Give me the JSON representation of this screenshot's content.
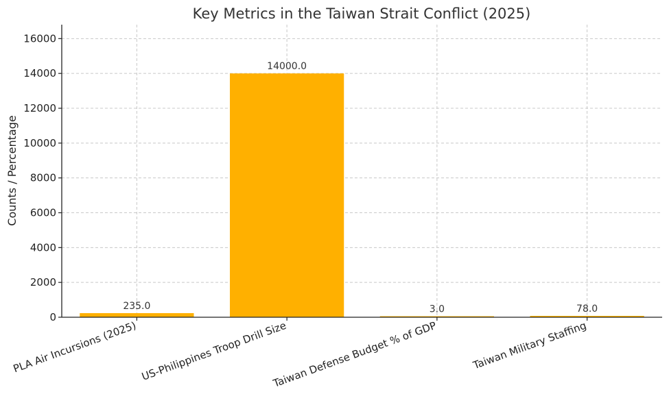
{
  "chart_data": {
    "type": "bar",
    "title": "Key Metrics in the Taiwan Strait Conflict (2025)",
    "xlabel": "",
    "ylabel": "Counts / Percentage",
    "categories": [
      "PLA Air Incursions (2025)",
      "US-Philippines Troop Drill Size",
      "Taiwan Defense Budget % of GDP",
      "Taiwan Military Staffing"
    ],
    "values": [
      235,
      14000,
      3,
      78
    ],
    "value_labels": [
      "235.0",
      "14000.0",
      "3.0",
      "78.0"
    ],
    "ylim": [
      0,
      16800
    ],
    "yticks": [
      0,
      2000,
      4000,
      6000,
      8000,
      10000,
      12000,
      14000,
      16000
    ],
    "grid": true,
    "bar_color": "#FFB000"
  }
}
